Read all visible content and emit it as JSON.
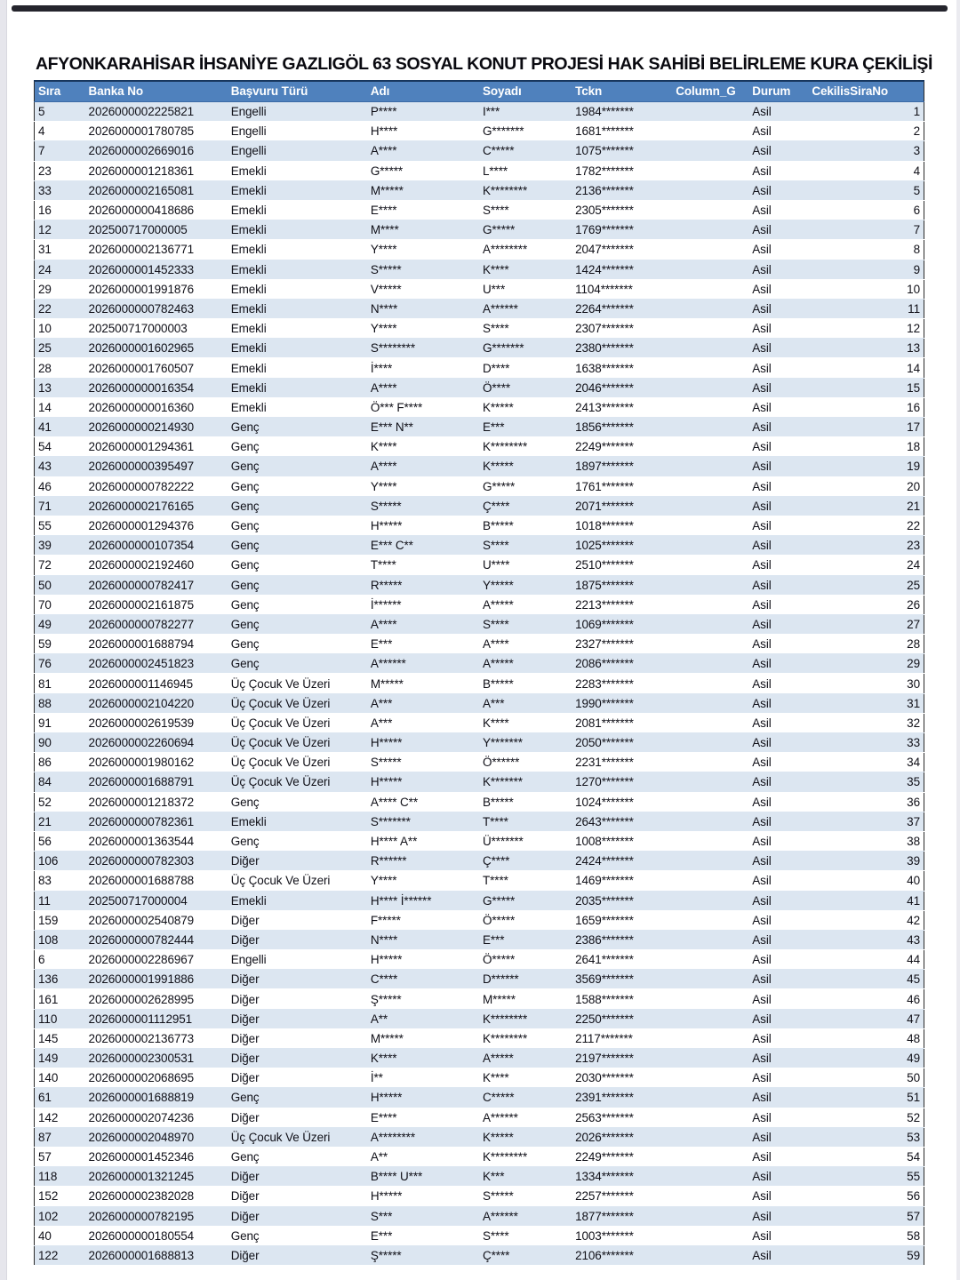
{
  "page": {
    "title": "AFYONKARAHİSAR İHSANİYE GAZLIGÖL 63 SOSYAL KONUT PROJESİ HAK SAHİBİ BELİRLEME KURA ÇEKİLİŞİ"
  },
  "colors": {
    "header_bg": "#4f81bd",
    "header_text": "#ffffff",
    "stripe": "#dce6f1",
    "border_dark": "#17365d"
  },
  "table": {
    "headers": [
      "Sıra",
      "Banka No",
      "Başvuru Türü",
      "Adı",
      "Soyadı",
      "Tckn",
      "Column_G",
      "Durum",
      "CekilisSiraNo"
    ],
    "rows": [
      [
        "5",
        "2026000002225821",
        "Engelli",
        "P****",
        "I***",
        "1984*******",
        "",
        "Asil",
        "1"
      ],
      [
        "4",
        "2026000001780785",
        "Engelli",
        "H****",
        "G*******",
        "1681*******",
        "",
        "Asil",
        "2"
      ],
      [
        "7",
        "2026000002669016",
        "Engelli",
        "A****",
        "C*****",
        "1075*******",
        "",
        "Asil",
        "3"
      ],
      [
        "23",
        "2026000001218361",
        "Emekli",
        "G*****",
        "L****",
        "1782*******",
        "",
        "Asil",
        "4"
      ],
      [
        "33",
        "2026000002165081",
        "Emekli",
        "M*****",
        "K********",
        "2136*******",
        "",
        "Asil",
        "5"
      ],
      [
        "16",
        "2026000000418686",
        "Emekli",
        "E****",
        "S****",
        "2305*******",
        "",
        "Asil",
        "6"
      ],
      [
        "12",
        "202500717000005",
        "Emekli",
        "M****",
        "G*****",
        "1769*******",
        "",
        "Asil",
        "7"
      ],
      [
        "31",
        "2026000002136771",
        "Emekli",
        "Y****",
        "A********",
        "2047*******",
        "",
        "Asil",
        "8"
      ],
      [
        "24",
        "2026000001452333",
        "Emekli",
        "S*****",
        "K****",
        "1424*******",
        "",
        "Asil",
        "9"
      ],
      [
        "29",
        "2026000001991876",
        "Emekli",
        "V*****",
        "U***",
        "1104*******",
        "",
        "Asil",
        "10"
      ],
      [
        "22",
        "2026000000782463",
        "Emekli",
        "N****",
        "A******",
        "2264*******",
        "",
        "Asil",
        "11"
      ],
      [
        "10",
        "202500717000003",
        "Emekli",
        "Y****",
        "S****",
        "2307*******",
        "",
        "Asil",
        "12"
      ],
      [
        "25",
        "2026000001602965",
        "Emekli",
        "S********",
        "G*******",
        "2380*******",
        "",
        "Asil",
        "13"
      ],
      [
        "28",
        "2026000001760507",
        "Emekli",
        "İ****",
        "D****",
        "1638*******",
        "",
        "Asil",
        "14"
      ],
      [
        "13",
        "2026000000016354",
        "Emekli",
        "A****",
        "Ö****",
        "2046*******",
        "",
        "Asil",
        "15"
      ],
      [
        "14",
        "2026000000016360",
        "Emekli",
        "Ö*** F****",
        "K*****",
        "2413*******",
        "",
        "Asil",
        "16"
      ],
      [
        "41",
        "2026000000214930",
        "Genç",
        "E*** N**",
        "E***",
        "1856*******",
        "",
        "Asil",
        "17"
      ],
      [
        "54",
        "2026000001294361",
        "Genç",
        "K****",
        "K********",
        "2249*******",
        "",
        "Asil",
        "18"
      ],
      [
        "43",
        "2026000000395497",
        "Genç",
        "A****",
        "K*****",
        "1897*******",
        "",
        "Asil",
        "19"
      ],
      [
        "46",
        "2026000000782222",
        "Genç",
        "Y****",
        "G*****",
        "1761*******",
        "",
        "Asil",
        "20"
      ],
      [
        "71",
        "2026000002176165",
        "Genç",
        "S*****",
        "Ç****",
        "2071*******",
        "",
        "Asil",
        "21"
      ],
      [
        "55",
        "2026000001294376",
        "Genç",
        "H*****",
        "B*****",
        "1018*******",
        "",
        "Asil",
        "22"
      ],
      [
        "39",
        "2026000000107354",
        "Genç",
        "E*** C**",
        "S****",
        "1025*******",
        "",
        "Asil",
        "23"
      ],
      [
        "72",
        "2026000002192460",
        "Genç",
        "T****",
        "U****",
        "2510*******",
        "",
        "Asil",
        "24"
      ],
      [
        "50",
        "2026000000782417",
        "Genç",
        "R*****",
        "Y*****",
        "1875*******",
        "",
        "Asil",
        "25"
      ],
      [
        "70",
        "2026000002161875",
        "Genç",
        "İ******",
        "A*****",
        "2213*******",
        "",
        "Asil",
        "26"
      ],
      [
        "49",
        "2026000000782277",
        "Genç",
        "A****",
        "S****",
        "1069*******",
        "",
        "Asil",
        "27"
      ],
      [
        "59",
        "2026000001688794",
        "Genç",
        "E***",
        "A****",
        "2327*******",
        "",
        "Asil",
        "28"
      ],
      [
        "76",
        "2026000002451823",
        "Genç",
        "A******",
        "A*****",
        "2086*******",
        "",
        "Asil",
        "29"
      ],
      [
        "81",
        "2026000001146945",
        "Üç Çocuk Ve Üzeri",
        "M*****",
        "B*****",
        "2283*******",
        "",
        "Asil",
        "30"
      ],
      [
        "88",
        "2026000002104220",
        "Üç Çocuk Ve Üzeri",
        "A***",
        "A***",
        "1990*******",
        "",
        "Asil",
        "31"
      ],
      [
        "91",
        "2026000002619539",
        "Üç Çocuk Ve Üzeri",
        "A***",
        "K****",
        "2081*******",
        "",
        "Asil",
        "32"
      ],
      [
        "90",
        "2026000002260694",
        "Üç Çocuk Ve Üzeri",
        "H*****",
        "Y*******",
        "2050*******",
        "",
        "Asil",
        "33"
      ],
      [
        "86",
        "2026000001980162",
        "Üç Çocuk Ve Üzeri",
        "S*****",
        "Ö******",
        "2231*******",
        "",
        "Asil",
        "34"
      ],
      [
        "84",
        "2026000001688791",
        "Üç Çocuk Ve Üzeri",
        "H*****",
        "K*******",
        "1270*******",
        "",
        "Asil",
        "35"
      ],
      [
        "52",
        "2026000001218372",
        "Genç",
        "A**** C**",
        "B*****",
        "1024*******",
        "",
        "Asil",
        "36"
      ],
      [
        "21",
        "2026000000782361",
        "Emekli",
        "S*******",
        "T****",
        "2643*******",
        "",
        "Asil",
        "37"
      ],
      [
        "56",
        "2026000001363544",
        "Genç",
        "H**** A**",
        "Ü*******",
        "1008*******",
        "",
        "Asil",
        "38"
      ],
      [
        "106",
        "2026000000782303",
        "Diğer",
        "R******",
        "Ç****",
        "2424*******",
        "",
        "Asil",
        "39"
      ],
      [
        "83",
        "2026000001688788",
        "Üç Çocuk Ve Üzeri",
        "Y****",
        "T****",
        "1469*******",
        "",
        "Asil",
        "40"
      ],
      [
        "11",
        "202500717000004",
        "Emekli",
        "H**** İ******",
        "G*****",
        "2035*******",
        "",
        "Asil",
        "41"
      ],
      [
        "159",
        "2026000002540879",
        "Diğer",
        "F*****",
        "Ö*****",
        "1659*******",
        "",
        "Asil",
        "42"
      ],
      [
        "108",
        "2026000000782444",
        "Diğer",
        "N****",
        "E***",
        "2386*******",
        "",
        "Asil",
        "43"
      ],
      [
        "6",
        "2026000002286967",
        "Engelli",
        "H*****",
        "Ö*****",
        "2641*******",
        "",
        "Asil",
        "44"
      ],
      [
        "136",
        "2026000001991886",
        "Diğer",
        "C****",
        "D******",
        "3569*******",
        "",
        "Asil",
        "45"
      ],
      [
        "161",
        "2026000002628995",
        "Diğer",
        "Ş*****",
        "M*****",
        "1588*******",
        "",
        "Asil",
        "46"
      ],
      [
        "110",
        "2026000001112951",
        "Diğer",
        "A**",
        "K********",
        "2250*******",
        "",
        "Asil",
        "47"
      ],
      [
        "145",
        "2026000002136773",
        "Diğer",
        "M*****",
        "K********",
        "2117*******",
        "",
        "Asil",
        "48"
      ],
      [
        "149",
        "2026000002300531",
        "Diğer",
        "K****",
        "A*****",
        "2197*******",
        "",
        "Asil",
        "49"
      ],
      [
        "140",
        "2026000002068695",
        "Diğer",
        "İ**",
        "K****",
        "2030*******",
        "",
        "Asil",
        "50"
      ],
      [
        "61",
        "2026000001688819",
        "Genç",
        "H*****",
        "C*****",
        "2391*******",
        "",
        "Asil",
        "51"
      ],
      [
        "142",
        "2026000002074236",
        "Diğer",
        "E****",
        "A******",
        "2563*******",
        "",
        "Asil",
        "52"
      ],
      [
        "87",
        "2026000002048970",
        "Üç Çocuk Ve Üzeri",
        "A********",
        "K*****",
        "2026*******",
        "",
        "Asil",
        "53"
      ],
      [
        "57",
        "2026000001452346",
        "Genç",
        "A**",
        "K********",
        "2249*******",
        "",
        "Asil",
        "54"
      ],
      [
        "118",
        "2026000001321245",
        "Diğer",
        "B**** U***",
        "K***",
        "1334*******",
        "",
        "Asil",
        "55"
      ],
      [
        "152",
        "2026000002382028",
        "Diğer",
        "H*****",
        "S*****",
        "2257*******",
        "",
        "Asil",
        "56"
      ],
      [
        "102",
        "2026000000782195",
        "Diğer",
        "S***",
        "A******",
        "1877*******",
        "",
        "Asil",
        "57"
      ],
      [
        "40",
        "2026000000180554",
        "Genç",
        "E***",
        "S****",
        "1003*******",
        "",
        "Asil",
        "58"
      ],
      [
        "122",
        "2026000001688813",
        "Diğer",
        "Ş*****",
        "Ç****",
        "2106*******",
        "",
        "Asil",
        "59"
      ]
    ]
  }
}
